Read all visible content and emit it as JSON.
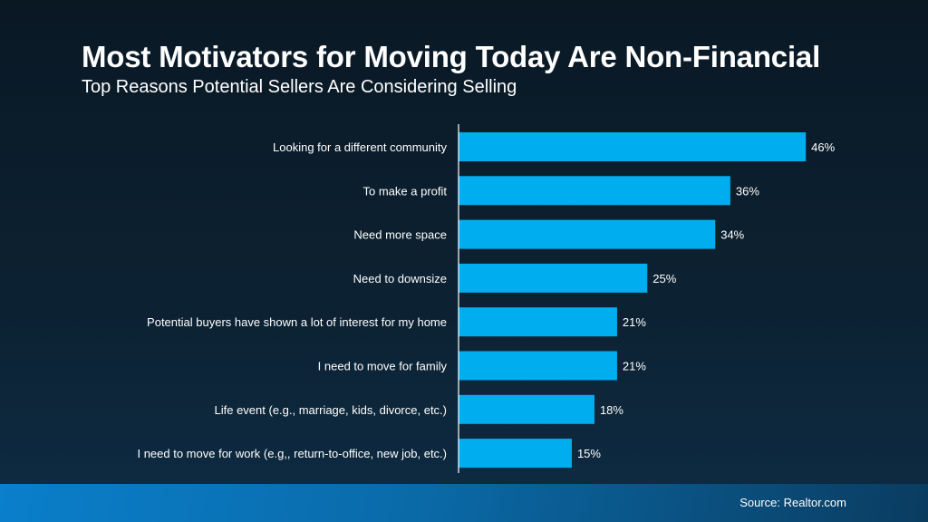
{
  "header": {
    "title": "Most Motivators for Moving Today Are Non-Financial",
    "subtitle": "Top Reasons Potential Sellers Are Considering Selling"
  },
  "footer": {
    "source": "Source: Realtor.com"
  },
  "colors": {
    "bar": "#00aeef",
    "axis": "#ffffff",
    "text": "#ffffff"
  },
  "chart_data": {
    "type": "bar",
    "orientation": "horizontal",
    "title": "",
    "categories": [
      "Looking for a different community",
      "To make a profit",
      "Need more space",
      "Need to downsize",
      "Potential buyers have shown a lot of interest for my home",
      "I need to move for family",
      "Life event (e.g., marriage, kids, divorce, etc.)",
      "I need to move for work (e.g,, return-to-office, new job, etc.)"
    ],
    "values": [
      46,
      36,
      34,
      25,
      21,
      21,
      18,
      15
    ],
    "data_labels": [
      "46%",
      "36%",
      "34%",
      "25%",
      "21%",
      "21%",
      "18%",
      "15%"
    ],
    "unit": "%",
    "grid": false,
    "legend": "none"
  }
}
